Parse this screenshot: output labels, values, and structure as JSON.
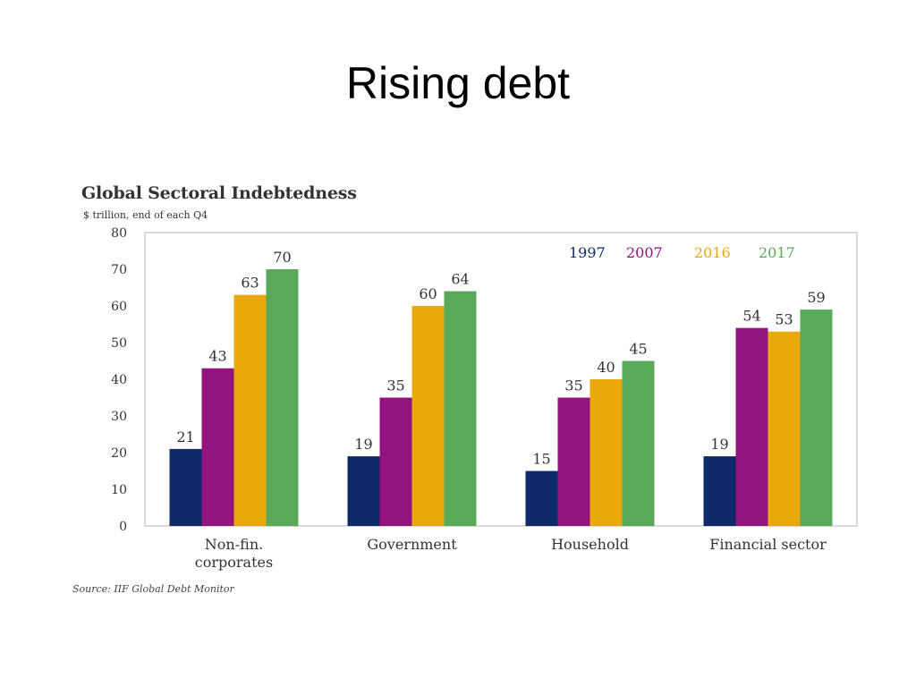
{
  "slide": {
    "title": "Rising debt"
  },
  "chart_data": {
    "type": "bar",
    "title": "Global Sectoral Indebtedness",
    "subtitle": "$ trillion, end of each Q4",
    "source": "Source: IIF Global Debt Monitor",
    "xlabel": "",
    "ylabel": "",
    "ylim": [
      0,
      80
    ],
    "yticks": [
      0,
      10,
      20,
      30,
      40,
      50,
      60,
      70,
      80
    ],
    "grid": false,
    "legend_position": "top-right",
    "categories": [
      "Non-fin.\ncorporates",
      "Government",
      "Household",
      "Financial sector"
    ],
    "series": [
      {
        "name": "1997",
        "color": "#0f2a6b",
        "values": [
          21,
          19,
          15,
          19
        ]
      },
      {
        "name": "2007",
        "color": "#93137f",
        "values": [
          43,
          35,
          35,
          54
        ]
      },
      {
        "name": "2016",
        "color": "#e8a90c",
        "values": [
          63,
          60,
          40,
          53
        ]
      },
      {
        "name": "2017",
        "color": "#5aa85a",
        "values": [
          70,
          64,
          45,
          59
        ]
      }
    ]
  }
}
